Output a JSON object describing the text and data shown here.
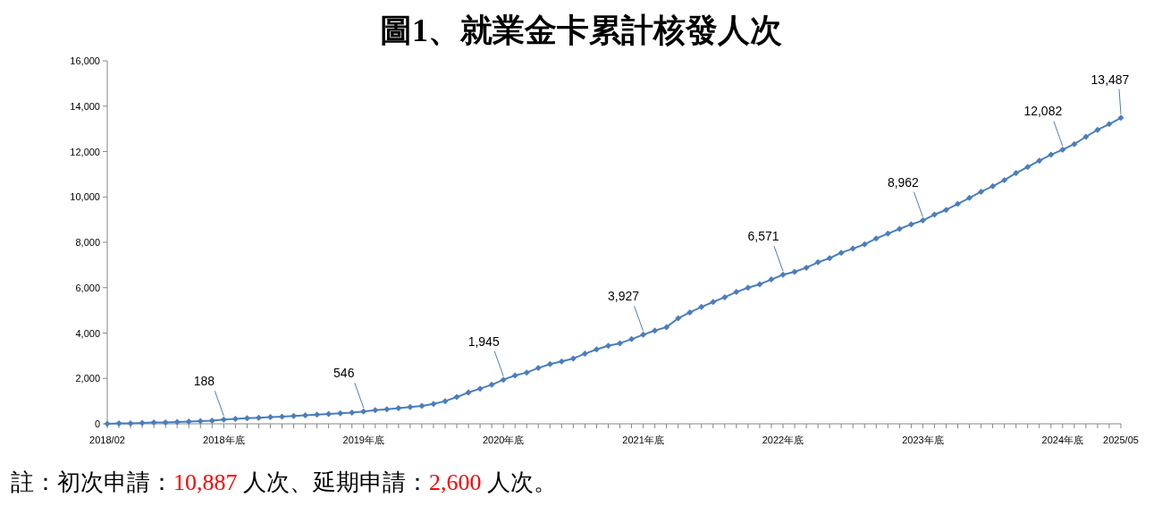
{
  "chart_data": {
    "type": "line",
    "title": "圖1、就業金卡累計核發人次",
    "categories": [
      "2018/02",
      null,
      null,
      null,
      null,
      null,
      null,
      null,
      null,
      null,
      "2018年底",
      null,
      null,
      null,
      null,
      null,
      null,
      null,
      null,
      null,
      null,
      null,
      "2019年底",
      null,
      null,
      null,
      null,
      null,
      null,
      null,
      null,
      null,
      null,
      null,
      "2020年底",
      null,
      null,
      null,
      null,
      null,
      null,
      null,
      null,
      null,
      null,
      null,
      "2021年底",
      null,
      null,
      null,
      null,
      null,
      null,
      null,
      null,
      null,
      null,
      null,
      "2022年底",
      null,
      null,
      null,
      null,
      null,
      null,
      null,
      null,
      null,
      null,
      null,
      "2023年底",
      null,
      null,
      null,
      null,
      null,
      null,
      null,
      null,
      null,
      null,
      null,
      "2024年底",
      null,
      null,
      null,
      null,
      "2025/05"
    ],
    "series": [
      {
        "color": "#4a7ebb",
        "values": [
          0,
          20,
          20,
          40,
          60,
          60,
          80,
          100,
          120,
          140,
          188,
          215,
          245,
          270,
          300,
          320,
          345,
          370,
          400,
          430,
          460,
          490,
          546,
          600,
          640,
          690,
          740,
          790,
          880,
          1000,
          1180,
          1380,
          1550,
          1720,
          1945,
          2130,
          2260,
          2460,
          2630,
          2750,
          2880,
          3090,
          3280,
          3440,
          3550,
          3730,
          3927,
          4110,
          4260,
          4650,
          4910,
          5150,
          5370,
          5580,
          5810,
          6000,
          6150,
          6360,
          6571,
          6700,
          6880,
          7120,
          7300,
          7540,
          7720,
          7910,
          8170,
          8380,
          8590,
          8790,
          8962,
          9220,
          9430,
          9690,
          9960,
          10230,
          10470,
          10740,
          11050,
          11320,
          11600,
          11860,
          12082,
          12330,
          12650,
          12960,
          13210,
          13487
        ],
        "value_labels": [
          null,
          null,
          null,
          null,
          null,
          null,
          null,
          null,
          null,
          null,
          "188",
          null,
          null,
          null,
          null,
          null,
          null,
          null,
          null,
          null,
          null,
          null,
          "546",
          null,
          null,
          null,
          null,
          null,
          null,
          null,
          null,
          null,
          null,
          null,
          "1,945",
          null,
          null,
          null,
          null,
          null,
          null,
          null,
          null,
          null,
          null,
          null,
          "3,927",
          null,
          null,
          null,
          null,
          null,
          null,
          null,
          null,
          null,
          null,
          null,
          "6,571",
          null,
          null,
          null,
          null,
          null,
          null,
          null,
          null,
          null,
          null,
          null,
          "8,962",
          null,
          null,
          null,
          null,
          null,
          null,
          null,
          null,
          null,
          null,
          null,
          "12,082",
          null,
          null,
          null,
          null,
          "13,487"
        ]
      }
    ],
    "ylim": [
      0,
      16000
    ],
    "yticks": [
      0,
      {
        "value": 2000,
        "label": "2,000"
      },
      {
        "value": 4000,
        "label": "4,000"
      },
      {
        "value": 6000,
        "label": "6,000"
      },
      {
        "value": 8000,
        "label": "8,000"
      },
      {
        "value": 10000,
        "label": "10,000"
      },
      {
        "value": 12000,
        "label": "12,000"
      },
      {
        "value": 14000,
        "label": "14,000"
      },
      {
        "value": 16000,
        "label": "16,000"
      }
    ],
    "grid": false,
    "marker": "diamond",
    "line_style": "solid",
    "annotations": [
      "註：初次申請：10,887 人次、延期申請：2,600 人次。"
    ]
  }
}
